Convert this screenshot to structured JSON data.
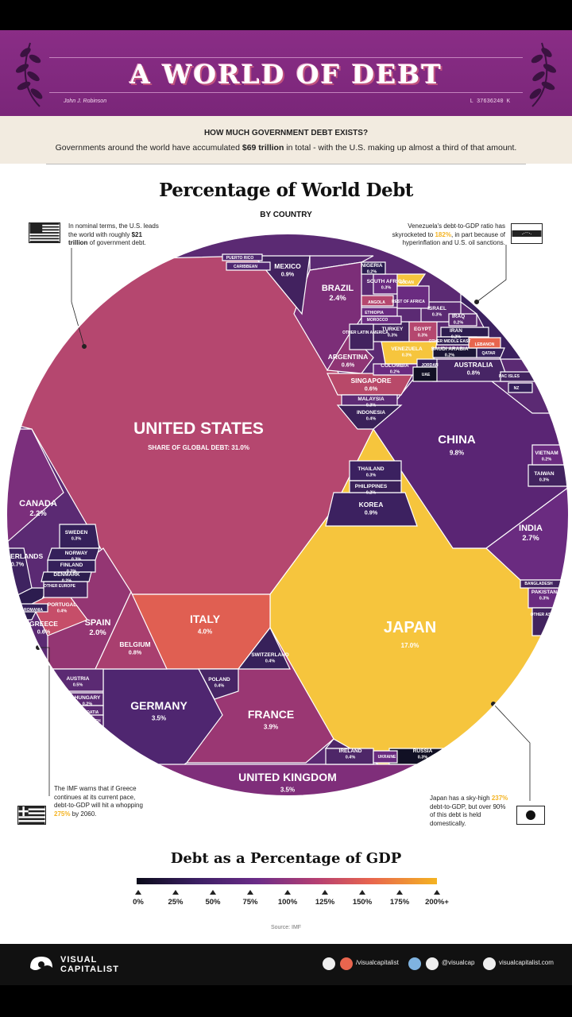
{
  "banner": {
    "title": "A WORLD OF DEBT",
    "serial": "L 37636240 K",
    "signature": "John J. Robinson",
    "color": "#7f2a7e"
  },
  "subhead": {
    "question": "HOW MUCH GOVERNMENT DEBT EXISTS?",
    "desc_pre": "Governments around the world have accumulated ",
    "desc_bold": "$69 trillion",
    "desc_post": " in total - with the U.S. making up almost a third of that amount."
  },
  "annotations": {
    "us_pre": "In nominal terms, the U.S. leads the world with roughly ",
    "us_bold": "$21 trillion",
    "us_post": " of government debt.",
    "venezuela_pre": "Venezuela's debt-to-GDP ratio has skyrocketed to ",
    "venezuela_hl": "182%",
    "venezuela_post": ", in part because of hyperinflation and U.S. oil sanctions.",
    "greece_pre": "The IMF warns that if Greece continues at its current pace, debt-to-GDP will hit a whopping ",
    "greece_hl": "275%",
    "greece_post": " by 2060.",
    "japan_pre": "Japan has a sky-high ",
    "japan_hl": "237%",
    "japan_post": " debt-to-GDP, but over 90% of this debt is held domestically."
  },
  "chart_data": {
    "type": "voronoi treemap",
    "title": "Percentage of World Debt",
    "subtitle": "BY COUNTRY",
    "value_label": "SHARE OF GLOBAL DEBT:",
    "cells": [
      {
        "name": "UNITED STATES",
        "share": 31.0,
        "color": "#b5476f"
      },
      {
        "name": "JAPAN",
        "share": 17.0,
        "color": "#f6c53d"
      },
      {
        "name": "CHINA",
        "share": 9.8,
        "color": "#5a2574"
      },
      {
        "name": "ITALY",
        "share": 4.0,
        "color": "#e05f52"
      },
      {
        "name": "FRANCE",
        "share": 3.9,
        "color": "#9a3773"
      },
      {
        "name": "GERMANY",
        "share": 3.5,
        "color": "#4f2670"
      },
      {
        "name": "UNITED KINGDOM",
        "share": 3.5,
        "color": "#7f2e7a"
      },
      {
        "name": "INDIA",
        "share": 2.7,
        "color": "#6a2b80"
      },
      {
        "name": "BRAZIL",
        "share": 2.4,
        "color": "#7c2e78"
      },
      {
        "name": "CANADA",
        "share": 2.2,
        "color": "#7b2f7c"
      },
      {
        "name": "SPAIN",
        "share": 2.0,
        "color": "#943673"
      },
      {
        "name": "MEXICO",
        "share": 0.9,
        "color": "#42225f"
      },
      {
        "name": "KOREA",
        "share": 0.9,
        "color": "#3c2160"
      },
      {
        "name": "BELGIUM",
        "share": 0.8,
        "color": "#a93f6f"
      },
      {
        "name": "AUSTRALIA",
        "share": 0.8,
        "color": "#472565"
      },
      {
        "name": "NETHERLANDS",
        "share": 0.7,
        "color": "#3e2360"
      },
      {
        "name": "ARGENTINA",
        "share": 0.6,
        "color": "#8f3574"
      },
      {
        "name": "SINGAPORE",
        "share": 0.6,
        "color": "#b84969"
      },
      {
        "name": "GREECE",
        "share": 0.6,
        "color": "#f6c53d"
      },
      {
        "name": "AUSTRIA",
        "share": 0.5,
        "color": "#5b2a73"
      },
      {
        "name": "PORTUGAL",
        "share": 0.4,
        "color": "#c64e69"
      },
      {
        "name": "SWITZERLAND",
        "share": 0.4,
        "color": "#37215a"
      },
      {
        "name": "POLAND",
        "share": 0.4,
        "color": "#472565"
      },
      {
        "name": "IRELAND",
        "share": 0.4,
        "color": "#4e2768"
      },
      {
        "name": "INDONESIA",
        "share": 0.4,
        "color": "#3a2159"
      },
      {
        "name": "SWEDEN",
        "share": 0.3,
        "color": "#35205a"
      },
      {
        "name": "THAILAND",
        "share": 0.3,
        "color": "#3b2160"
      },
      {
        "name": "TURKEY",
        "share": 0.3,
        "color": "#42235f"
      },
      {
        "name": "EGYPT",
        "share": 0.3,
        "color": "#b5476f"
      },
      {
        "name": "VENEZUELA",
        "share": 0.3,
        "color": "#f6c53d"
      },
      {
        "name": "ISRAEL",
        "share": 0.3,
        "color": "#5b2a73"
      },
      {
        "name": "MALAYSIA",
        "share": 0.3,
        "color": "#5d2b75"
      },
      {
        "name": "RUSSIA",
        "share": 0.3,
        "color": "#111024"
      },
      {
        "name": "TAIWAN",
        "share": 0.3,
        "color": "#42235f"
      },
      {
        "name": "PAKISTAN",
        "share": 0.3,
        "color": "#6a2b80"
      },
      {
        "name": "SOUTH AFRICA",
        "share": 0.3,
        "color": "#6a2b80"
      },
      {
        "name": "NORWAY",
        "share": 0.3,
        "color": "#35205a"
      },
      {
        "name": "NIGERIA",
        "share": 0.2,
        "color": "#2b1c50"
      },
      {
        "name": "COLOMBIA",
        "share": 0.2,
        "color": "#6a2b80"
      },
      {
        "name": "SAUDI ARABIA",
        "share": 0.2,
        "color": "#1c1636"
      },
      {
        "name": "VIETNAM",
        "share": 0.2,
        "color": "#6a2b80"
      },
      {
        "name": "FINLAND",
        "share": 0.2,
        "color": "#35205a"
      },
      {
        "name": "DENMARK",
        "share": 0.2,
        "color": "#2c1c4f"
      },
      {
        "name": "HUNGARY",
        "share": 0.2,
        "color": "#5b2a73"
      },
      {
        "name": "IRAQ",
        "share": 0.2,
        "color": "#5b2a73"
      },
      {
        "name": "IRAN",
        "share": 0.2,
        "color": "#2c1c4f"
      },
      {
        "name": "PHILIPPINES",
        "share": 0.2,
        "color": "#3a2159"
      }
    ],
    "small_labels": [
      "PUERTO RICO",
      "CARIBBEAN",
      "SUDAN",
      "REST OF AFRICA",
      "ANGOLA",
      "ETHIOPIA",
      "MOROCCO",
      "OTHER LATIN AMERICA",
      "OTHER MIDDLE EAST",
      "LEBANON",
      "QATAR",
      "JORDAN",
      "UAE",
      "PAC ISLES",
      "NZ",
      "OTHER EUROPE",
      "ROMANIA",
      "CROATIA",
      "CZECH",
      "UKRAINE",
      "BANGLADESH",
      "OTHER ASIA"
    ],
    "color_scale": {
      "title": "Debt as a Percentage of GDP",
      "ticks": [
        "0%",
        "25%",
        "50%",
        "75%",
        "100%",
        "125%",
        "150%",
        "175%",
        "200%+"
      ]
    },
    "source": "Source: IMF"
  },
  "footer": {
    "brand_line1": "VISUAL",
    "brand_line2": "CAPITALIST",
    "handle1": "/visualcapitalist",
    "handle2": "@visualcap",
    "site": "visualcapitalist.com"
  }
}
